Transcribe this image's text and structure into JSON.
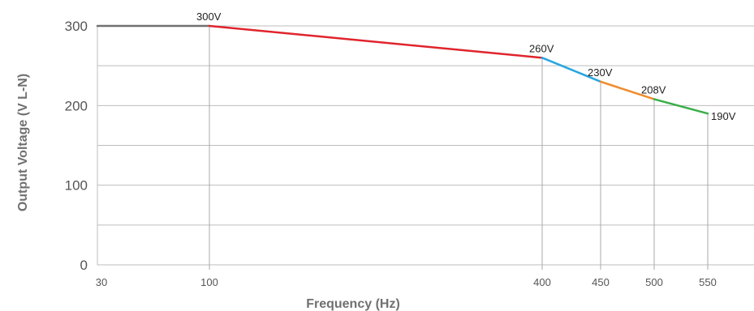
{
  "chart_data": {
    "type": "line",
    "title": "",
    "xlabel": "Frequency (Hz)",
    "ylabel": "Output Voltage (V L-N)",
    "ylim": [
      0,
      300
    ],
    "yticks": [
      "0",
      "100",
      "200",
      "300"
    ],
    "xticks": [
      "30",
      "100",
      "400",
      "450",
      "500",
      "550"
    ],
    "grid": true,
    "points": [
      {
        "x": 30,
        "y": 300
      },
      {
        "x": 100,
        "y": 300
      },
      {
        "x": 400,
        "y": 260
      },
      {
        "x": 450,
        "y": 230
      },
      {
        "x": 500,
        "y": 208
      },
      {
        "x": 550,
        "y": 190
      }
    ],
    "point_labels": [
      {
        "x": 100,
        "y": 300,
        "text": "300V"
      },
      {
        "x": 400,
        "y": 260,
        "text": "260V"
      },
      {
        "x": 450,
        "y": 230,
        "text": "230V"
      },
      {
        "x": 500,
        "y": 208,
        "text": "208V"
      },
      {
        "x": 550,
        "y": 190,
        "text": "190V"
      }
    ],
    "segment_colors": [
      "#707070",
      "#e0242c",
      "#27a6e0",
      "#f08b2c",
      "#3cae49"
    ]
  }
}
